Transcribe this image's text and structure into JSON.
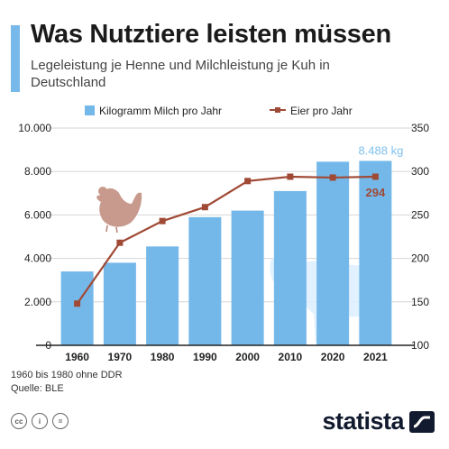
{
  "header": {
    "title": "Was Nutztiere leisten müssen",
    "subtitle": "Legeleistung je Henne und Milchleistung je Kuh in Deutschland"
  },
  "chart_data": {
    "type": "bar+line",
    "categories": [
      "1960",
      "1970",
      "1980",
      "1990",
      "2000",
      "2010",
      "2020",
      "2021"
    ],
    "series": [
      {
        "name": "Kilogramm Milch pro Jahr",
        "type": "bar",
        "axis": "left",
        "color": "#74b8ea",
        "values": [
          3400,
          3800,
          4550,
          5900,
          6200,
          7100,
          8450,
          8488
        ]
      },
      {
        "name": "Eier pro Jahr",
        "type": "line",
        "axis": "right",
        "color": "#a04a35",
        "values": [
          148,
          218,
          243,
          259,
          289,
          294,
          293,
          294
        ]
      }
    ],
    "left_axis": {
      "min": 0,
      "max": 10000,
      "ticks": [
        "0",
        "2.000",
        "4.000",
        "6.000",
        "8.000",
        "10.000"
      ]
    },
    "right_axis": {
      "min": 100,
      "max": 350,
      "ticks": [
        "100",
        "150",
        "200",
        "250",
        "300",
        "350"
      ]
    },
    "annotations": {
      "last_bar_label": "8.488 kg",
      "last_line_label": "294"
    },
    "legend_position": "top",
    "grid": true
  },
  "footer": {
    "note": "1960 bis 1980 ohne DDR",
    "source": "Quelle: BLE",
    "license_icons": [
      "cc",
      "i",
      "="
    ],
    "brand": "statista"
  },
  "colors": {
    "accent": "#77b9ea",
    "bar": "#74b8ea",
    "line": "#a04a35",
    "label_highlight": "#7fc0ee",
    "label_line": "#a04a35"
  },
  "decorations": [
    "hen-icon",
    "cow-icon"
  ]
}
